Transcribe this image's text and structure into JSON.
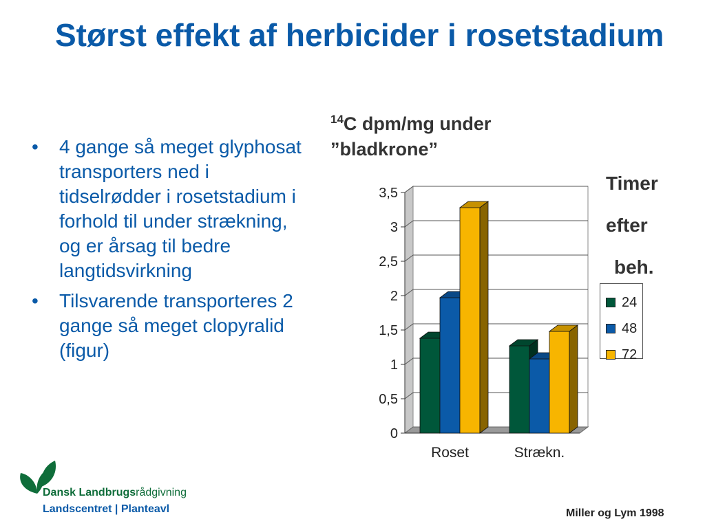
{
  "slide": {
    "title": "Størst effekt af herbicider i rosetstadium",
    "bullets": [
      "4 gange så meget glyphosat transporters ned i tidselrødder i rosetstadium i forhold til under strækning, og er årsag til bedre langtidsvirkning",
      "Tilsvarende transporteres 2 gange så meget clopyralid (figur)"
    ],
    "citation": "Miller og Lym 1998"
  },
  "logo": {
    "line1_part1": "Dansk Landbrugs",
    "line1_part2": "rådgivning",
    "line2": "Landscentret | Planteavl",
    "color_green": "#0f6d3a",
    "color_blue": "#0a5aa8"
  },
  "chart_data": {
    "type": "bar",
    "title_superscript": "14",
    "title_rest": "C dpm/mg under ”bladkrone”",
    "categories": [
      "Roset",
      "Strækn."
    ],
    "yticks": [
      "0",
      "0,5",
      "1",
      "1,5",
      "2",
      "2,5",
      "3",
      "3,5"
    ],
    "ylim": [
      0,
      3.5
    ],
    "grid": true,
    "legend_title": [
      "Timer",
      "efter",
      "beh."
    ],
    "legend_placement": "right",
    "series": [
      {
        "name": "24",
        "values": [
          1.38,
          1.27
        ],
        "color": "#00573a"
      },
      {
        "name": "48",
        "values": [
          1.97,
          1.08
        ],
        "color": "#0b5aa8"
      },
      {
        "name": "72",
        "values": [
          3.28,
          1.48
        ],
        "color": "#f7b500"
      }
    ]
  }
}
